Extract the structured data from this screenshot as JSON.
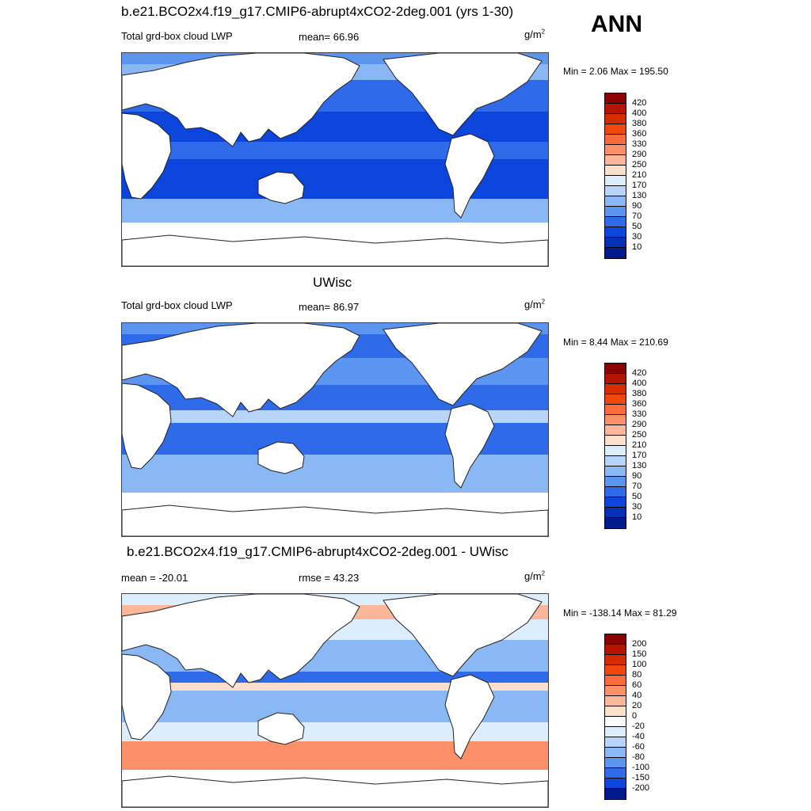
{
  "season": "ANN",
  "panels": [
    {
      "title": "b.e21.BCO2x4.f19_g17.CMIP6-abrupt4xCO2-2deg.001 (yrs 1-30)",
      "left_label": "Total grd-box cloud LWP",
      "center_label": "mean=  66.96",
      "unit_base": "g/m",
      "unit_exp": "2",
      "minmax": "Min =   2.06 Max = 195.50",
      "levels": [
        "420",
        "400",
        "380",
        "360",
        "330",
        "290",
        "250",
        "210",
        "170",
        "130",
        "90",
        "70",
        "50",
        "30",
        "10"
      ],
      "colors": [
        "#8b0000",
        "#b51500",
        "#d42b00",
        "#f0470f",
        "#fb6a3a",
        "#fc9169",
        "#fcb699",
        "#fde0cc",
        "#dceefc",
        "#b7d5f8",
        "#8ab8f5",
        "#5b95ef",
        "#2f6ae8",
        "#0b45dc",
        "#0430b5",
        "#001a8c"
      ]
    },
    {
      "title": "UWisc",
      "left_label": "Total grd-box cloud LWP",
      "center_label": "mean=  86.97",
      "unit_base": "g/m",
      "unit_exp": "2",
      "minmax": "Min =   8.44 Max = 210.69",
      "levels": [
        "420",
        "400",
        "380",
        "360",
        "330",
        "290",
        "250",
        "210",
        "170",
        "130",
        "90",
        "70",
        "50",
        "30",
        "10"
      ],
      "colors": [
        "#8b0000",
        "#b51500",
        "#d42b00",
        "#f0470f",
        "#fb6a3a",
        "#fc9169",
        "#fcb699",
        "#fde0cc",
        "#dceefc",
        "#b7d5f8",
        "#8ab8f5",
        "#5b95ef",
        "#2f6ae8",
        "#0b45dc",
        "#0430b5",
        "#001a8c"
      ]
    },
    {
      "title": "b.e21.BCO2x4.f19_g17.CMIP6-abrupt4xCO2-2deg.001 - UWisc",
      "left_label": "mean = -20.01",
      "center_label": "rmse =  43.23",
      "unit_base": "g/m",
      "unit_exp": "2",
      "minmax": "Min = -138.14 Max =  81.29",
      "levels": [
        "200",
        "150",
        "100",
        "80",
        "60",
        "40",
        "20",
        "0",
        "-20",
        "-40",
        "-60",
        "-80",
        "-100",
        "-150",
        "-200"
      ],
      "colors": [
        "#8b0000",
        "#b51500",
        "#d42b00",
        "#f0470f",
        "#fb6a3a",
        "#fc9169",
        "#fcb699",
        "#fde0cc",
        "#ffffff",
        "#dceefc",
        "#b7d5f8",
        "#8ab8f5",
        "#5b95ef",
        "#2f6ae8",
        "#0b45dc",
        "#001a8c"
      ]
    }
  ]
}
